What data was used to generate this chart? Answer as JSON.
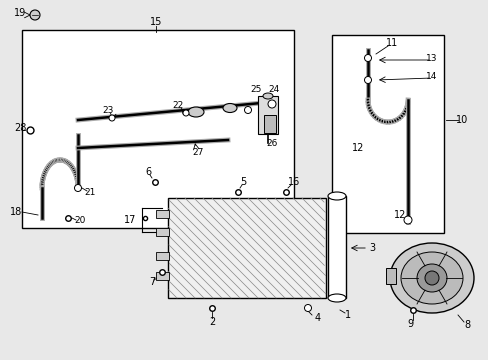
{
  "bg_color": "#e8e8e8",
  "white": "#ffffff",
  "black": "#000000",
  "fig_width": 4.89,
  "fig_height": 3.6,
  "dpi": 100
}
